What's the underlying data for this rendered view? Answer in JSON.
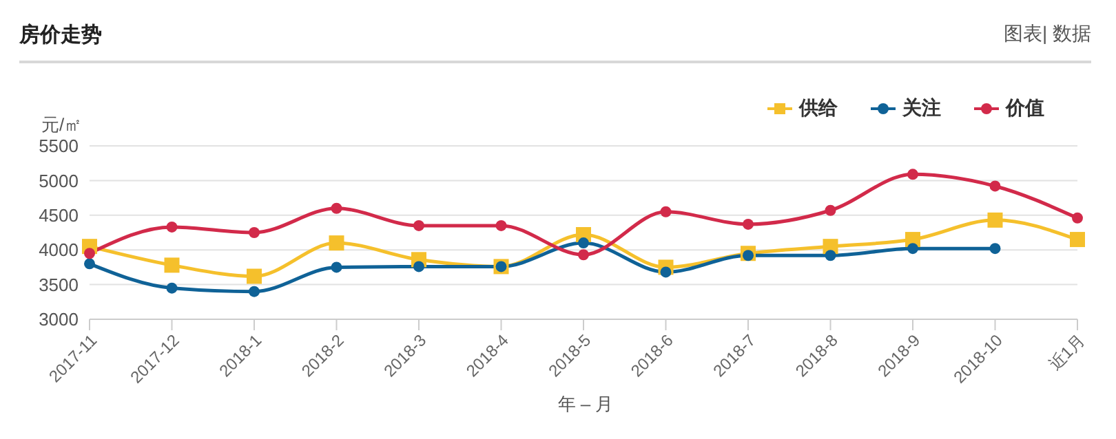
{
  "chart_data": {
    "type": "line",
    "title": "房价走势",
    "annotations": [
      "图表| 数据"
    ],
    "ylabel": "元/㎡",
    "xlabel": "年 – 月",
    "categories": [
      "2017-11",
      "2017-12",
      "2018-1",
      "2018-2",
      "2018-3",
      "2018-4",
      "2018-5",
      "2018-6",
      "2018-7",
      "2018-8",
      "2018-9",
      "2018-10",
      "近1月"
    ],
    "series": [
      {
        "name": "供给",
        "color": "#f5c02c",
        "marker": "square",
        "values": [
          4050,
          3780,
          3620,
          4100,
          3860,
          3760,
          4220,
          3750,
          3950,
          4050,
          4150,
          4430,
          4150
        ]
      },
      {
        "name": "关注",
        "color": "#0f6297",
        "marker": "circle",
        "values": [
          3800,
          3450,
          3400,
          3750,
          3760,
          3760,
          4100,
          3680,
          3920,
          3920,
          4020,
          4020,
          null
        ]
      },
      {
        "name": "价值",
        "color": "#d22a4a",
        "marker": "circle",
        "values": [
          3950,
          4330,
          4250,
          4600,
          4350,
          4350,
          3930,
          4550,
          4370,
          4570,
          5090,
          4920,
          4460
        ]
      }
    ],
    "ylim": [
      3000,
      5500
    ],
    "yticks": [
      3000,
      3500,
      4000,
      4500,
      5000,
      5500
    ],
    "grid": "y",
    "legend": "top right"
  }
}
